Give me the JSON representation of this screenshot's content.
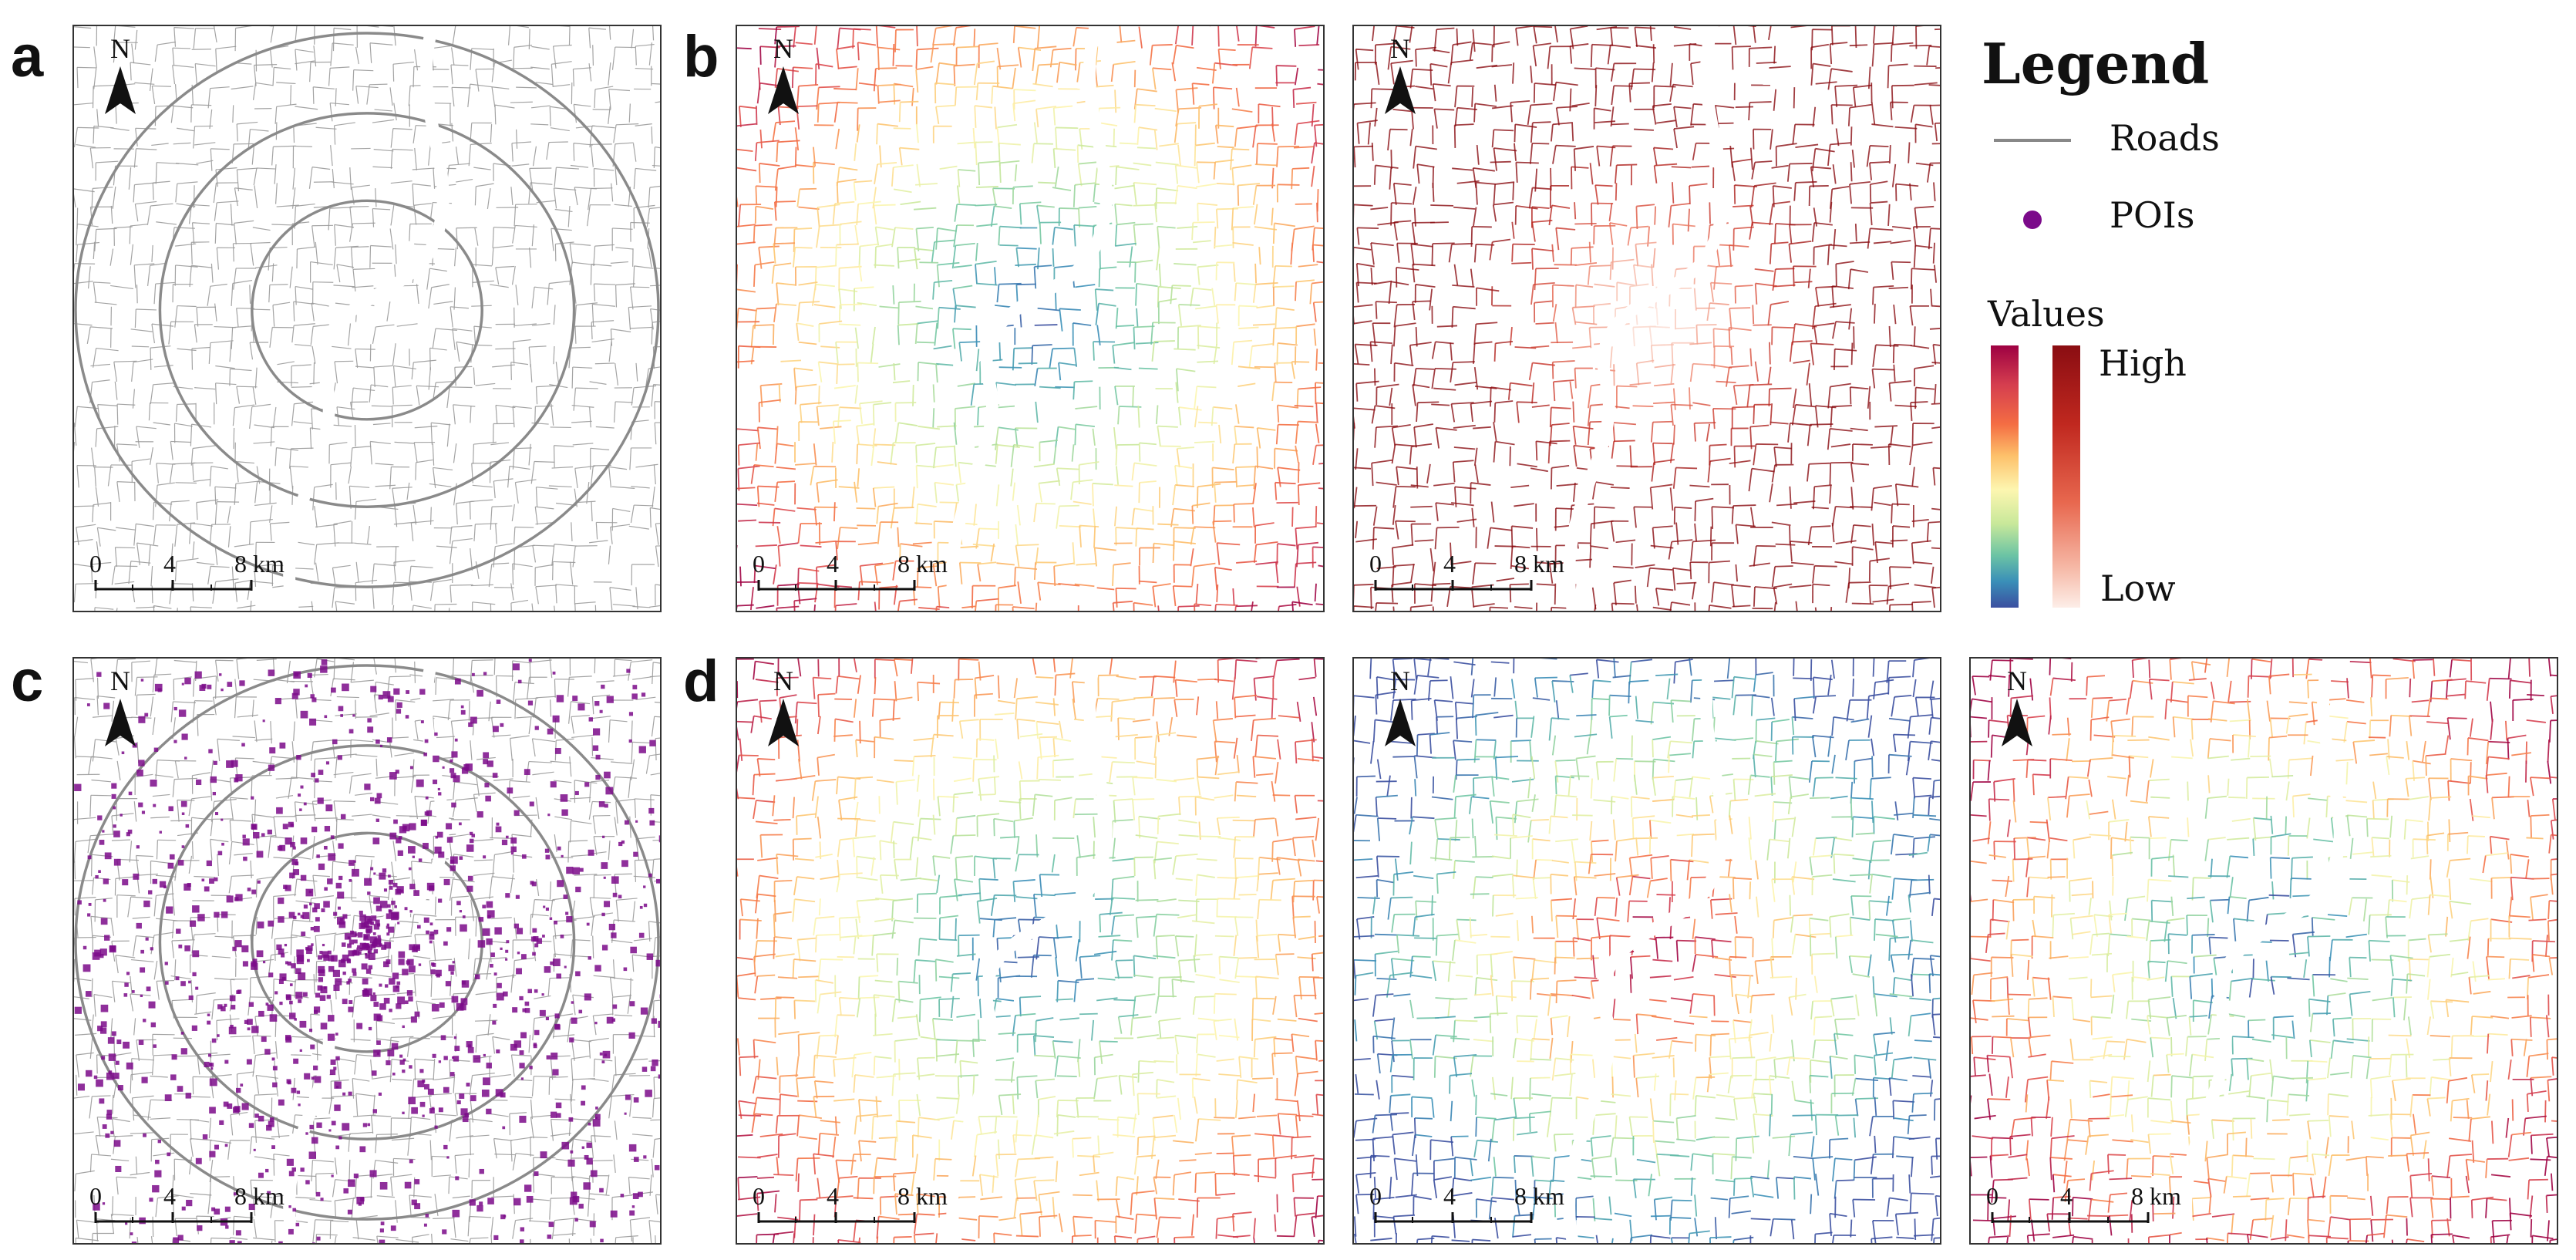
{
  "panel_labels": [
    "a",
    "b",
    "c",
    "d"
  ],
  "north_label": "N",
  "scale_bar": {
    "ticks": [
      "0",
      "4",
      "8 km"
    ]
  },
  "legend": {
    "title": "Legend",
    "roads_label": "Roads",
    "pois_label": "POIs",
    "values_label": "Values",
    "high_label": "High",
    "low_label": "Low"
  },
  "colors": {
    "road": "#9a9a9a",
    "poi": "#7b0a8a",
    "spectral": [
      "#3b4fa0",
      "#3a8fb8",
      "#6cc4a4",
      "#c8e89a",
      "#fdf6b0",
      "#fdc06a",
      "#f46d43",
      "#d53e4f",
      "#9e0142"
    ],
    "reds": [
      "#fdeee8",
      "#f6b9a7",
      "#e8684f",
      "#c0281f",
      "#8a0d12"
    ]
  },
  "maps": [
    {
      "id": "a",
      "style": "roads"
    },
    {
      "id": "b1",
      "style": "spectral-center"
    },
    {
      "id": "b2",
      "style": "reds-center"
    },
    {
      "id": "c",
      "style": "pois"
    },
    {
      "id": "d1",
      "style": "spectral-center"
    },
    {
      "id": "d2",
      "style": "spectral-inverted"
    },
    {
      "id": "d3",
      "style": "spectral-purple"
    }
  ]
}
